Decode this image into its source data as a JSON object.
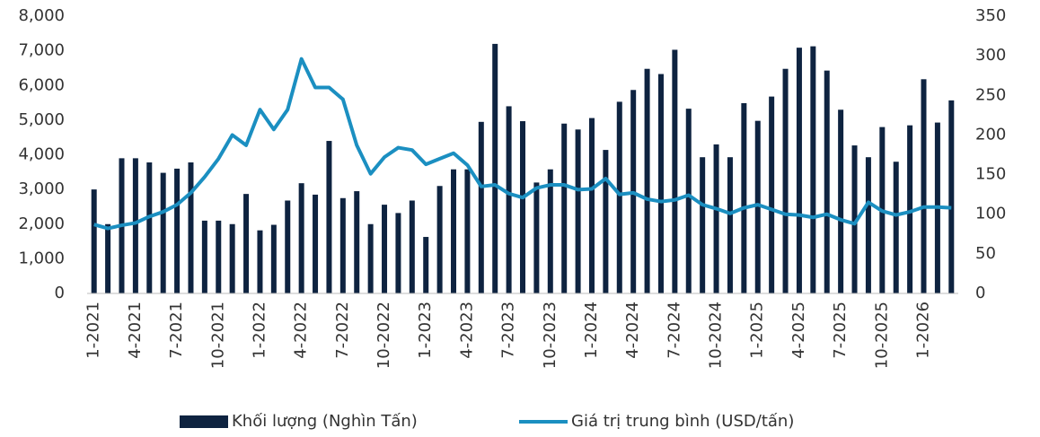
{
  "chart_data": {
    "type": "bar_line",
    "categories": [
      "1-2021",
      null,
      null,
      "4-2021",
      null,
      null,
      "7-2021",
      null,
      null,
      "10-2021",
      null,
      null,
      "1-2022",
      null,
      null,
      "4-2022",
      null,
      null,
      "7-2022",
      null,
      null,
      "10-2022",
      null,
      null,
      "1-2023",
      null,
      null,
      "4-2023",
      null,
      null,
      "7-2023",
      null,
      null,
      "10-2023",
      null,
      null,
      "1-2024",
      null,
      null,
      "4-2024",
      null,
      null,
      "7-2024",
      null,
      null,
      "10-2024",
      null,
      null,
      "1-2025",
      null,
      null,
      "4-2025",
      null,
      null,
      "7-2025",
      null,
      null,
      "10-2025",
      null,
      null,
      "1-2026",
      null,
      null
    ],
    "series": [
      {
        "name": "Khối lượng (Nghìn Tấn)",
        "type": "bar",
        "color": "#0e2340",
        "values": [
          3000,
          2000,
          3900,
          3900,
          3780,
          3480,
          3600,
          3780,
          2100,
          2100,
          2000,
          2870,
          1820,
          1980,
          2680,
          3180,
          2850,
          4400,
          2750,
          2950,
          2000,
          2560,
          2320,
          2680,
          1630,
          3100,
          3580,
          3580,
          4950,
          7200,
          5400,
          4970,
          3200,
          3580,
          4900,
          4730,
          5060,
          4140,
          5530,
          5870,
          6480,
          6330,
          7030,
          5330,
          3930,
          4300,
          3930,
          5490,
          4980,
          5680,
          6480,
          7090,
          7130,
          6430,
          5300,
          4270,
          3930,
          4800,
          3800,
          4850,
          6180,
          4930,
          5570
        ]
      },
      {
        "name": "Giá trị trung bình (USD/tấn)",
        "type": "line",
        "axis": "y2",
        "color": "#1b8fc1",
        "values": [
          87,
          82,
          86,
          89,
          97,
          103,
          112,
          127,
          147,
          170,
          200,
          187,
          232,
          207,
          232,
          296,
          260,
          260,
          245,
          187,
          151,
          172,
          184,
          181,
          163,
          170,
          177,
          162,
          135,
          137,
          126,
          121,
          133,
          137,
          137,
          131,
          132,
          145,
          125,
          127,
          119,
          116,
          118,
          124,
          112,
          107,
          101,
          108,
          112,
          106,
          100,
          99,
          96,
          100,
          93,
          88,
          115,
          104,
          99,
          103,
          109,
          109,
          108
        ]
      }
    ],
    "ylim": [
      0,
      8000
    ],
    "yticks": [
      0,
      {
        "value": 1000,
        "label": "1,000"
      },
      {
        "value": 2000,
        "label": "2,000"
      },
      {
        "value": 3000,
        "label": "3,000"
      },
      {
        "value": 4000,
        "label": "4,000"
      },
      {
        "value": 5000,
        "label": "5,000"
      },
      {
        "value": 6000,
        "label": "6,000"
      },
      {
        "value": 7000,
        "label": "7,000"
      },
      {
        "value": 8000,
        "label": "8,000"
      }
    ],
    "y2lim": [
      0,
      350
    ],
    "y2ticks": [
      0,
      50,
      100,
      150,
      200,
      250,
      300,
      350
    ],
    "legend": "bottom"
  }
}
